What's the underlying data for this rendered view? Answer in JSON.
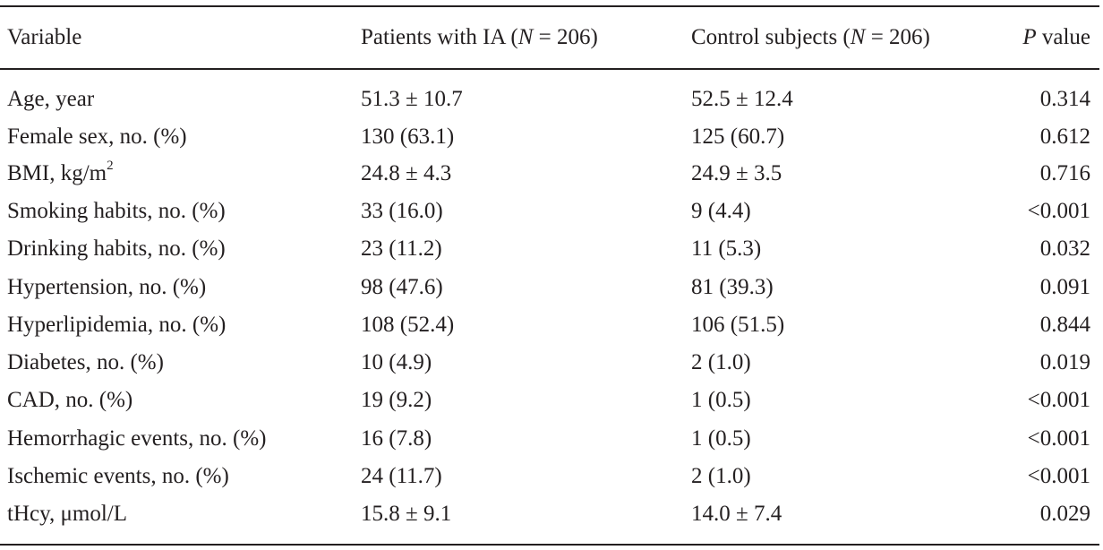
{
  "header": {
    "variable": "Variable",
    "ia_prefix": "Patients with IA (",
    "ia_n_symbol": "N",
    "ia_suffix": " = 206)",
    "control_prefix": "Control subjects (",
    "control_n_symbol": "N",
    "control_suffix": " = 206)",
    "p_symbol": "P",
    "p_suffix": " value"
  },
  "rows": [
    {
      "variable": "Age, year",
      "ia": "51.3 ± 10.7",
      "control": "52.5 ± 12.4",
      "p": "0.314"
    },
    {
      "variable": "Female sex, no. (%)",
      "ia": "130 (63.1)",
      "control": "125 (60.7)",
      "p": "0.612"
    },
    {
      "variable": "BMI, kg/m",
      "variable_sup": "2",
      "ia": "24.8 ± 4.3",
      "control": "24.9 ± 3.5",
      "p": "0.716"
    },
    {
      "variable": "Smoking habits, no. (%)",
      "ia": "33 (16.0)",
      "control": "9 (4.4)",
      "p": "<0.001"
    },
    {
      "variable": "Drinking habits, no. (%)",
      "ia": "23 (11.2)",
      "control": "11 (5.3)",
      "p": "0.032"
    },
    {
      "variable": "Hypertension, no. (%)",
      "ia": "98 (47.6)",
      "control": "81 (39.3)",
      "p": "0.091"
    },
    {
      "variable": "Hyperlipidemia, no. (%)",
      "ia": "108 (52.4)",
      "control": "106 (51.5)",
      "p": "0.844"
    },
    {
      "variable": "Diabetes, no. (%)",
      "ia": "10 (4.9)",
      "control": "2 (1.0)",
      "p": "0.019"
    },
    {
      "variable": "CAD, no. (%)",
      "ia": "19 (9.2)",
      "control": "1 (0.5)",
      "p": "<0.001"
    },
    {
      "variable": "Hemorrhagic events, no. (%)",
      "ia": "16 (7.8)",
      "control": "1 (0.5)",
      "p": "<0.001"
    },
    {
      "variable": "Ischemic events, no. (%)",
      "ia": "24 (11.7)",
      "control": "2 (1.0)",
      "p": "<0.001"
    },
    {
      "variable": "tHcy, μmol/L",
      "ia": "15.8 ± 9.1",
      "control": "14.0 ± 7.4",
      "p": "0.029"
    }
  ]
}
